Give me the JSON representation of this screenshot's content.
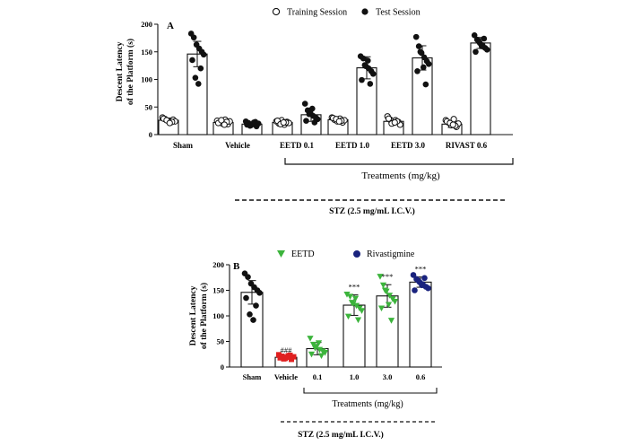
{
  "chart_data": [
    {
      "panel": "A",
      "type": "bar",
      "ylabel_line1": "Descent Latency",
      "ylabel_line2": "of the Platform (s)",
      "ylim": [
        0,
        200
      ],
      "yticks": [
        0,
        50,
        100,
        150,
        200
      ],
      "legend": [
        {
          "name": "Training Session",
          "marker": "open-circle"
        },
        {
          "name": "Test Session",
          "marker": "filled-circle"
        }
      ],
      "legend_position": "top",
      "categories": [
        "Sham",
        "Vehicle",
        "EETD 0.1",
        "EETD 1.0",
        "EETD 3.0",
        "RIVAST 0.6"
      ],
      "series": [
        {
          "name": "Training Session",
          "marker": "open-circle",
          "values": [
            26,
            22,
            22,
            27,
            24,
            19
          ],
          "sd": [
            4,
            4,
            3,
            4,
            5,
            6
          ],
          "points": [
            [
              31,
              28,
              25,
              22,
              27,
              24,
              29,
              23,
              26,
              21
            ],
            [
              25,
              22,
              20,
              27,
              19,
              24,
              21,
              23,
              26,
              18
            ],
            [
              24,
              20,
              26,
              18,
              23,
              21,
              25,
              22,
              19,
              22
            ],
            [
              31,
              27,
              24,
              29,
              22,
              26,
              30,
              25,
              28,
              24
            ],
            [
              33,
              27,
              21,
              26,
              23,
              18,
              29,
              24,
              20,
              22
            ],
            [
              26,
              22,
              17,
              28,
              14,
              20,
              24,
              16,
              21,
              18
            ]
          ]
        },
        {
          "name": "Test Session",
          "marker": "filled-circle",
          "values": [
            146,
            19,
            36,
            121,
            139,
            166
          ],
          "sd": [
            23,
            4,
            12,
            20,
            22,
            10
          ],
          "points": [
            [
              183,
              176,
              163,
              156,
              150,
              145,
              135,
              120,
              103,
              92
            ],
            [
              24,
              21,
              17,
              22,
              15,
              20,
              18,
              23,
              16,
              19
            ],
            [
              56,
              44,
              40,
              34,
              31,
              28,
              25,
              22,
              37,
              47
            ],
            [
              142,
              138,
              124,
              120,
              115,
              110,
              99,
              92,
              126,
              134
            ],
            [
              177,
              160,
              148,
              140,
              133,
              128,
              115,
              91,
              150,
              122
            ],
            [
              180,
              172,
              166,
              162,
              157,
              154,
              150,
              174,
              169,
              160
            ]
          ]
        }
      ],
      "bracket_label": "Treatments (mg/kg)",
      "bottom_label": "STZ (2.5 mg/mL I.C.V.)"
    },
    {
      "panel": "B",
      "type": "bar",
      "ylabel_line1": "Descent Latency",
      "ylabel_line2": "of the Platform (s)",
      "ylim": [
        0,
        200
      ],
      "yticks": [
        0,
        50,
        100,
        150,
        200
      ],
      "legend": [
        {
          "name": "EETD",
          "marker": "green-triangle-down",
          "color": "#3cb43c"
        },
        {
          "name": "Rivastigmine",
          "marker": "navy-circle",
          "color": "#1a237e"
        }
      ],
      "legend_position": "top",
      "categories": [
        "Sham",
        "Vehicle",
        "0.1",
        "1.0",
        "3.0",
        "0.6"
      ],
      "bars": [
        {
          "value": 146,
          "sd": 23,
          "marker": "circle",
          "color": "#111111",
          "annotation": "",
          "points": [
            183,
            176,
            163,
            156,
            150,
            145,
            135,
            120,
            103,
            92
          ]
        },
        {
          "value": 19,
          "sd": 4,
          "marker": "square",
          "color": "#e02020",
          "annotation": "###",
          "points": [
            24,
            21,
            17,
            22,
            15,
            20,
            18,
            23,
            16,
            19
          ]
        },
        {
          "value": 36,
          "sd": 12,
          "marker": "triangle-down",
          "color": "#3cb43c",
          "annotation": "",
          "points": [
            56,
            44,
            40,
            34,
            31,
            28,
            25,
            22,
            37,
            47
          ]
        },
        {
          "value": 121,
          "sd": 20,
          "marker": "triangle-down",
          "color": "#3cb43c",
          "annotation": "***",
          "points": [
            142,
            138,
            124,
            120,
            115,
            110,
            99,
            92,
            126,
            134
          ]
        },
        {
          "value": 139,
          "sd": 22,
          "marker": "triangle-down",
          "color": "#3cb43c",
          "annotation": "***",
          "points": [
            177,
            160,
            148,
            140,
            133,
            128,
            115,
            91,
            150,
            122
          ]
        },
        {
          "value": 166,
          "sd": 10,
          "marker": "circle",
          "color": "#1a237e",
          "annotation": "***",
          "points": [
            180,
            172,
            166,
            162,
            157,
            154,
            150,
            174,
            169,
            160
          ]
        }
      ],
      "bracket_label": "Treatments (mg/kg)",
      "bottom_label": "STZ (2.5 mg/mL I.C.V.)"
    }
  ]
}
